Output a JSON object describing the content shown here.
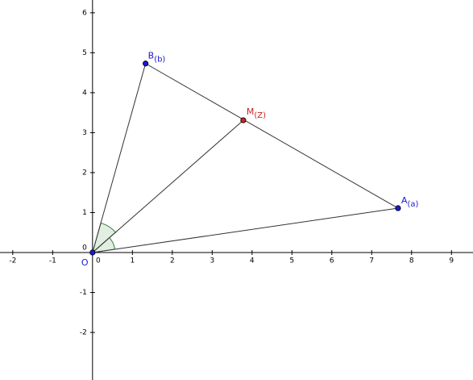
{
  "chart_data": {
    "type": "geometry",
    "xlim": [
      -2.32,
      9.54
    ],
    "ylim": [
      -3.19,
      6.32
    ],
    "xticks": [
      -2,
      -1,
      0,
      1,
      2,
      3,
      4,
      5,
      6,
      7,
      8,
      9
    ],
    "yticks": [
      -2,
      -1,
      0,
      1,
      2,
      3,
      4,
      5,
      6
    ],
    "points": [
      {
        "name": "O",
        "x": 0,
        "y": 0,
        "color": "#1a1acc"
      },
      {
        "name": "A",
        "sub": "(a)",
        "x": 7.66,
        "y": 1.11,
        "color": "#1a1acc"
      },
      {
        "name": "B",
        "sub": "(b)",
        "x": 1.33,
        "y": 4.73,
        "color": "#1a1acc"
      },
      {
        "name": "M",
        "sub": "(Z)",
        "x": 3.78,
        "y": 3.31,
        "color": "#cc2222"
      }
    ],
    "segments": [
      [
        "O",
        "A"
      ],
      [
        "O",
        "B"
      ],
      [
        "A",
        "B"
      ],
      [
        "O",
        "M"
      ]
    ],
    "angle_fill": "#d9ead9"
  }
}
